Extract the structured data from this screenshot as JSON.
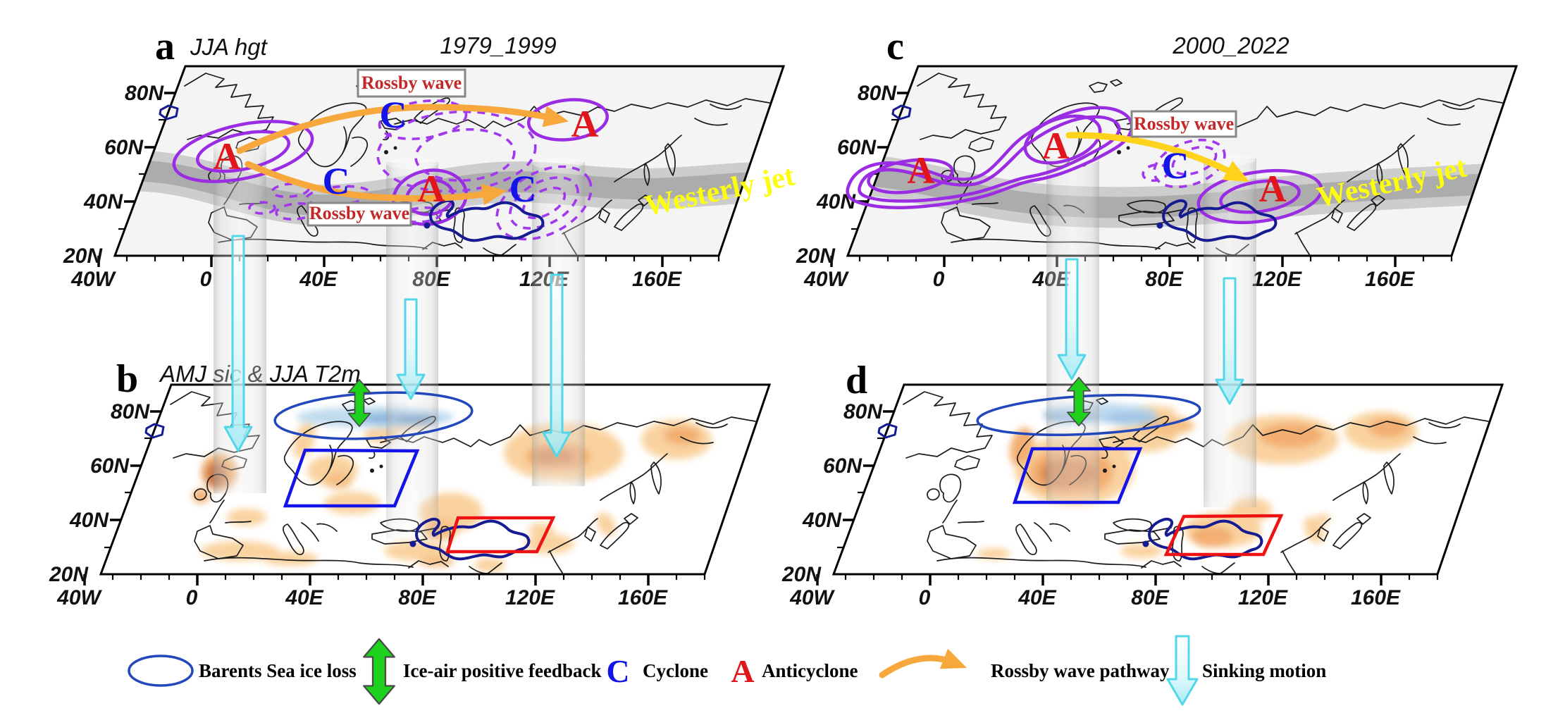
{
  "panels": {
    "a": {
      "letter": "a",
      "subtitle": "JJA hgt",
      "title": "1979_1999",
      "jet_label": "Westerly jet",
      "rossby_boxes": [
        "Rossby wave",
        "Rossby wave"
      ],
      "markers": [
        {
          "symbol": "A",
          "meaning": "anticyclone"
        },
        {
          "symbol": "C",
          "meaning": "cyclone"
        },
        {
          "symbol": "C",
          "meaning": "cyclone"
        },
        {
          "symbol": "A",
          "meaning": "anticyclone"
        },
        {
          "symbol": "C",
          "meaning": "cyclone"
        },
        {
          "symbol": "A",
          "meaning": "anticyclone"
        }
      ]
    },
    "b": {
      "letter": "b",
      "subtitle": "AMJ sic & JJA T2m"
    },
    "c": {
      "letter": "c",
      "title": "2000_2022",
      "jet_label": "Westerly jet",
      "rossby_boxes": [
        "Rossby wave"
      ],
      "markers": [
        {
          "symbol": "A",
          "meaning": "anticyclone"
        },
        {
          "symbol": "A",
          "meaning": "anticyclone"
        },
        {
          "symbol": "C",
          "meaning": "cyclone"
        },
        {
          "symbol": "A",
          "meaning": "anticyclone"
        }
      ]
    },
    "d": {
      "letter": "d"
    }
  },
  "axis": {
    "lat": [
      "80N",
      "60N",
      "40N",
      "20N"
    ],
    "lon": [
      "40W",
      "0",
      "40E",
      "80E",
      "120E",
      "160E"
    ]
  },
  "legend": {
    "items": [
      {
        "icon": "blue-ellipse-icon",
        "label": "Barents Sea ice loss"
      },
      {
        "icon": "green-double-arrow-icon",
        "label": "Ice-air positive feedback"
      },
      {
        "icon": "cyclone-symbol",
        "symbol": "C",
        "label": "Cyclone"
      },
      {
        "icon": "anticyclone-symbol",
        "symbol": "A",
        "label": "Anticyclone"
      },
      {
        "icon": "orange-curved-arrow-icon",
        "label": "Rossby wave pathway"
      },
      {
        "icon": "cyan-down-arrow-icon",
        "label": "Sinking motion"
      }
    ]
  },
  "colors": {
    "anticyclone_red": "#e0161c",
    "cyclone_blue": "#1414e6",
    "purple_contour": "#9a2ce4",
    "navy_contour": "#161b92",
    "rossby_text_red": "#c32828",
    "westerly_jet_yellow": "#fdfd0f",
    "rossby_arrow_orange": "#f6a83c",
    "rossby_arrow_yellow": "#ffd31c",
    "feedback_green": "#1dd11d",
    "sinking_cyan": "#52d7e9",
    "barents_ellipse_blue": "#2246bb",
    "region_box_blue": "#1414e8",
    "region_box_red": "#ee1212",
    "jet_band_gray": "#a8a8a8",
    "warm_anomaly_orange": "#f2a866",
    "sea_ice_blue": "#8ab5dc"
  }
}
